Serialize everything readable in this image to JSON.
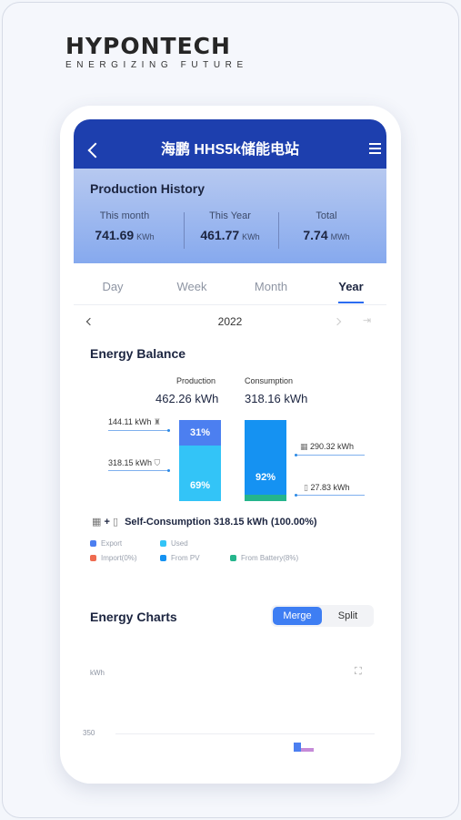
{
  "brand": {
    "logo": "HYPONTECH",
    "tagline": "ENERGIZING FUTURE"
  },
  "header": {
    "title": "海鹏 HHS5k储能电站"
  },
  "production_history": {
    "title": "Production History",
    "stats": [
      {
        "label": "This month",
        "value": "741.69",
        "unit": "KWh"
      },
      {
        "label": "This Year",
        "value": "461.77",
        "unit": "KWh"
      },
      {
        "label": "Total",
        "value": "7.74",
        "unit": "MWh"
      }
    ]
  },
  "tabs": [
    {
      "label": "Day"
    },
    {
      "label": "Week"
    },
    {
      "label": "Month"
    },
    {
      "label": "Year"
    }
  ],
  "active_tab": "Year",
  "year_nav": {
    "year": "2022"
  },
  "energy_balance": {
    "title": "Energy Balance",
    "production": {
      "label": "Production",
      "value": "462.26 kWh",
      "export_pct": "31%",
      "used_pct": "69%",
      "export_fraction": 0.31,
      "used_fraction": 0.69
    },
    "consumption": {
      "label": "Consumption",
      "value": "318.16 kWh",
      "pv_pct": "92%",
      "pv_fraction": 0.92,
      "battery_fraction": 0.08
    },
    "left_labels": {
      "export": "144.11 kWh",
      "used": "318.15 kWh"
    },
    "right_labels": {
      "pv": "290.32 kWh",
      "battery": "27.83 kWh"
    },
    "self_consumption": "Self-Consumption 318.15 kWh (100.00%)",
    "legend": [
      {
        "label": "Export",
        "color": "#4c7ff0"
      },
      {
        "label": "Used",
        "color": "#33c4f7"
      },
      {
        "label": "Import(0%)",
        "color": "#ef6b50"
      },
      {
        "label": "From PV",
        "color": "#1592f2"
      },
      {
        "label": "From Battery(8%)",
        "color": "#25b58c"
      }
    ]
  },
  "energy_charts": {
    "title": "Energy Charts",
    "merge_label": "Merge",
    "split_label": "Split",
    "unit": "kWh",
    "y_tick": "350"
  },
  "colors": {
    "primary": "#1d3fae",
    "accent": "#3e7ef3"
  }
}
